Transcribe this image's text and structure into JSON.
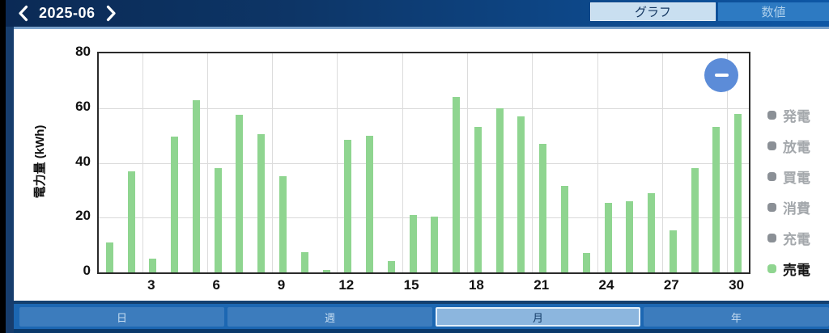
{
  "header": {
    "date": "2025-06",
    "icons": {
      "prev": "chevron-left",
      "next": "chevron-right"
    },
    "view_tabs": [
      {
        "label": "グラフ",
        "active": true
      },
      {
        "label": "数値",
        "active": false
      }
    ]
  },
  "chart_data": {
    "type": "bar",
    "title": "",
    "ylabel": "電力量 (kWh)",
    "xlabel": "",
    "ylim": [
      0,
      80
    ],
    "yticks": [
      0,
      20,
      40,
      60,
      80
    ],
    "xticks": [
      3,
      6,
      9,
      12,
      15,
      18,
      21,
      24,
      27,
      30
    ],
    "grid": true,
    "legend_position": "right",
    "categories": [
      1,
      2,
      3,
      4,
      5,
      6,
      7,
      8,
      9,
      10,
      11,
      12,
      13,
      14,
      15,
      16,
      17,
      18,
      19,
      20,
      21,
      22,
      23,
      24,
      25,
      26,
      27,
      28,
      29,
      30
    ],
    "series": [
      {
        "name": "売電",
        "color": "#8fd590",
        "values": [
          11,
          37,
          5,
          49.5,
          63,
          38,
          57.5,
          50.5,
          35,
          7.5,
          1,
          48.5,
          50,
          4,
          21,
          20.5,
          64,
          53,
          60,
          57,
          47,
          31.5,
          7,
          25.5,
          26,
          29,
          15.5,
          38,
          53,
          58
        ]
      }
    ]
  },
  "legend": {
    "active_color": "#8fd590",
    "inactive_dot_color": "#8b9096",
    "inactive_text_color": "#a4a8ac",
    "active_text_color": "#161616",
    "items": [
      {
        "key": "generation",
        "label": "発電",
        "active": false
      },
      {
        "key": "discharge",
        "label": "放電",
        "active": false
      },
      {
        "key": "purchase",
        "label": "買電",
        "active": false
      },
      {
        "key": "consumption",
        "label": "消費",
        "active": false
      },
      {
        "key": "charge",
        "label": "充電",
        "active": false
      },
      {
        "key": "sell",
        "label": "売電",
        "active": true
      }
    ]
  },
  "zoom_button": {
    "icon": "minus-icon",
    "color": "#5c8cd8"
  },
  "period_tabs": [
    {
      "label": "日",
      "active": false
    },
    {
      "label": "週",
      "active": false
    },
    {
      "label": "月",
      "active": true
    },
    {
      "label": "年",
      "active": false
    }
  ]
}
